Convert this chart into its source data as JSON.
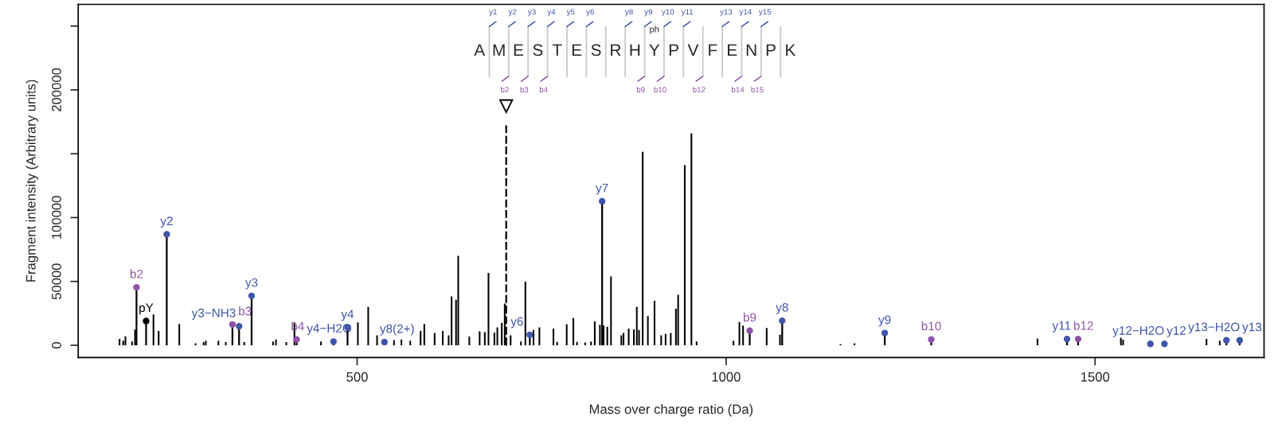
{
  "chart_data": [
    {
      "type": "bar",
      "xlabel": "Mass over charge ratio (Da)",
      "ylabel": "Fragment intensity (Arbitrary units)",
      "xlim": [
        122,
        1729
      ],
      "ylim": [
        -9600,
        267000
      ],
      "xticks": [
        500,
        1000,
        1500
      ],
      "yticks": [
        0,
        50000,
        100000,
        {
          "value": 150000,
          "label": null
        },
        200000,
        {
          "value": 250000,
          "label": null
        }
      ],
      "series": [
        {
          "color": "#000000",
          "x": [
            178,
            183,
            186,
            195,
            199,
            224,
            231,
            259,
            281,
            292,
            295,
            312,
            322,
            347,
            386,
            390,
            404,
            415,
            451,
            501,
            515,
            527,
            550,
            560,
            572,
            586,
            591,
            605,
            616,
            624,
            628,
            634,
            637,
            652,
            666,
            673,
            678,
            686,
            690,
            696,
            700,
            708,
            722,
            728,
            739,
            747,
            766,
            771,
            784,
            793,
            798,
            809,
            817,
            822,
            829,
            834,
            839,
            844,
            858,
            861,
            868,
            875,
            879,
            882,
            887,
            894,
            903,
            912,
            918,
            925,
            932,
            935,
            944,
            953,
            960,
            1010,
            1018,
            1023,
            1055,
            1073,
            1155,
            1174,
            1422,
            1535,
            1538,
            1651,
            1669
          ],
          "values": [
            5000,
            3500,
            7000,
            3000,
            12300,
            24100,
            11200,
            16700,
            1600,
            2500,
            3500,
            3500,
            2500,
            2500,
            3000,
            4500,
            2500,
            17900,
            3000,
            17900,
            30000,
            7800,
            4000,
            4500,
            3500,
            11200,
            16700,
            9700,
            11200,
            7800,
            38300,
            35600,
            70000,
            6800,
            10900,
            10300,
            56600,
            10000,
            14000,
            17600,
            32700,
            7800,
            3000,
            49900,
            12000,
            14000,
            13000,
            2600,
            16500,
            21300,
            2600,
            2200,
            3000,
            18600,
            16000,
            15600,
            14400,
            53900,
            7800,
            9700,
            13000,
            12400,
            30000,
            12000,
            151500,
            22800,
            34800,
            7800,
            8800,
            9700,
            28600,
            39600,
            141100,
            166000,
            3000,
            3500,
            18200,
            15400,
            13600,
            8300,
            900,
            1500,
            5300,
            5900,
            4300,
            4900,
            3500
          ]
        },
        {
          "type": "bar",
          "color": "#000000",
          "line_style": "dashed",
          "x": [
            702
          ],
          "values": [
            173400
          ]
        },
        {
          "type": "lollipop",
          "color": "#3f55a8",
          "marker": "circle",
          "x": [
            242,
            340,
            357,
            468,
            487,
            537,
            734,
            832,
            1076,
            1215,
            1462,
            1575,
            1594,
            1678,
            1696
          ],
          "values": [
            86900,
            14900,
            38700,
            2900,
            14000,
            2500,
            8200,
            112800,
            19200,
            9600,
            4900,
            1100,
            1100,
            3900,
            3900
          ],
          "value_labels": [
            "y2",
            "y3−NH3",
            "y3",
            "y4−H2O",
            "y4",
            "y8(2+)",
            "y6",
            "y7",
            "y8",
            "y9",
            "y11",
            "y12−H2O",
            "y12",
            "y13−H2O",
            "y13"
          ]
        },
        {
          "type": "lollipop",
          "color": "#8e52a8",
          "marker": "circle",
          "x": [
            201,
            331,
            418,
            1032,
            1278,
            1477
          ],
          "values": [
            45400,
            16300,
            4500,
            11400,
            4600,
            4900
          ],
          "value_labels": [
            "b2",
            "b3",
            "b4",
            "b9",
            "b10",
            "b12"
          ]
        },
        {
          "type": "lollipop",
          "color": "#000000",
          "marker": "circle",
          "x": [
            214
          ],
          "values": [
            19000
          ],
          "value_labels": [
            "pY"
          ]
        }
      ]
    },
    {
      "type": "other",
      "annotations": [
        "A",
        "M",
        "E",
        "S",
        "T",
        "E",
        "S",
        "R",
        "H",
        "Y",
        "P",
        "V",
        "F",
        "E",
        "N",
        "P",
        "K",
        "y1",
        "y2",
        "y3",
        "y4",
        "y5",
        "y6",
        "y8",
        "y9",
        "y10",
        "y11",
        "y13",
        "y14",
        "y15",
        "ph",
        "b2",
        "b3",
        "b4",
        "b9",
        "b10",
        "b12",
        "b14",
        "b15"
      ]
    }
  ]
}
